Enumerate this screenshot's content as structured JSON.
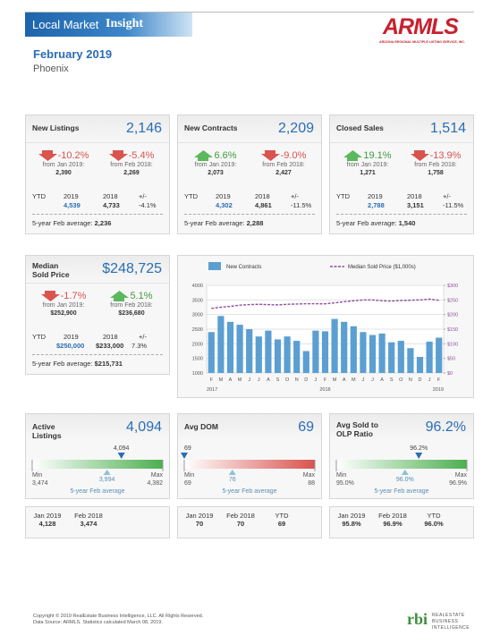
{
  "header": {
    "brand": "Local Market",
    "brand_bold": "Insight",
    "logo": "ARMLS",
    "logo_sub": "ARIZONA REGIONAL MULTIPLE LISTING SERVICE, INC.",
    "period": "February 2019",
    "area": "Phoenix"
  },
  "stats": [
    {
      "title": "New Listings",
      "value": "2,146",
      "changes": [
        {
          "pct": "-10.2%",
          "direction": "down",
          "label": "from Jan 2019:",
          "value": "2,390"
        },
        {
          "pct": "-5.4%",
          "direction": "down",
          "label": "from Feb 2018:",
          "value": "2,269"
        }
      ],
      "ytd": {
        "headers": [
          "YTD",
          "2019",
          "2018",
          "+/-"
        ],
        "values": [
          "4,539",
          "4,733",
          "-4.1%"
        ]
      },
      "avg": {
        "label": "5-year Feb average:",
        "value": "2,236"
      }
    },
    {
      "title": "New Contracts",
      "value": "2,209",
      "changes": [
        {
          "pct": "6.6%",
          "direction": "up",
          "label": "from Jan 2019:",
          "value": "2,073"
        },
        {
          "pct": "-9.0%",
          "direction": "down",
          "label": "from Feb 2018:",
          "value": "2,427"
        }
      ],
      "ytd": {
        "headers": [
          "YTD",
          "2019",
          "2018",
          "+/-"
        ],
        "values": [
          "4,302",
          "4,861",
          "-11.5%"
        ]
      },
      "avg": {
        "label": "5-year Feb average:",
        "value": "2,288"
      }
    },
    {
      "title": "Closed Sales",
      "value": "1,514",
      "changes": [
        {
          "pct": "19.1%",
          "direction": "up",
          "label": "from Jan 2019:",
          "value": "1,271"
        },
        {
          "pct": "-13.9%",
          "direction": "down",
          "label": "from Feb 2018:",
          "value": "1,758"
        }
      ],
      "ytd": {
        "headers": [
          "YTD",
          "2019",
          "2018",
          "+/-"
        ],
        "values": [
          "2,788",
          "3,151",
          "-11.5%"
        ]
      },
      "avg": {
        "label": "5-year Feb average:",
        "value": "1,540"
      }
    },
    {
      "title": "Median Sold Price",
      "value": "$248,725",
      "changes": [
        {
          "pct": "-1.7%",
          "direction": "down",
          "label": "from Jan 2019:",
          "value": "$252,900"
        },
        {
          "pct": "5.1%",
          "direction": "up",
          "label": "from Feb 2018:",
          "value": "$236,680"
        }
      ],
      "ytd": {
        "headers": [
          "YTD",
          "2019",
          "2018",
          "+/-"
        ],
        "values": [
          "$250,000",
          "$233,000",
          "7.3%"
        ]
      },
      "avg": {
        "label": "5-year Feb average:",
        "value": "$215,731"
      }
    }
  ],
  "chart_data": {
    "type": "bar-line",
    "categories": [
      "F",
      "M",
      "A",
      "M",
      "J",
      "J",
      "A",
      "S",
      "O",
      "N",
      "D",
      "J",
      "F",
      "M",
      "A",
      "M",
      "J",
      "J",
      "A",
      "S",
      "O",
      "N",
      "D",
      "J",
      "F"
    ],
    "x_groups": [
      "2017",
      "2018",
      "2019"
    ],
    "series": [
      {
        "name": "New Contracts",
        "type": "bar",
        "color": "#5b9fd2",
        "values": [
          2400,
          2950,
          2750,
          2650,
          2500,
          2250,
          2450,
          2150,
          2250,
          2100,
          1750,
          2450,
          2427,
          2850,
          2750,
          2600,
          2400,
          2300,
          2350,
          2050,
          2100,
          1850,
          1550,
          2073,
          2209
        ]
      },
      {
        "name": "Median Sold Price ($1,000s)",
        "type": "line",
        "axis": "y2",
        "color": "#8e4f9e",
        "dashed": true,
        "values": [
          221,
          225,
          228,
          232,
          234,
          235,
          234,
          233,
          235,
          236,
          237,
          237,
          236.68,
          240,
          244,
          247,
          250,
          250,
          247,
          246,
          248,
          249,
          250,
          252.9,
          248.725
        ]
      }
    ],
    "ylim": [
      1000,
      4000
    ],
    "yticks": [
      1000,
      1500,
      2000,
      2500,
      3000,
      3500,
      4000
    ],
    "y2lim": [
      0,
      300
    ],
    "y2ticks": [
      {
        "value": 0,
        "label": "$0"
      },
      {
        "value": 50,
        "label": "$50"
      },
      {
        "value": 100,
        "label": "$100"
      },
      {
        "value": 150,
        "label": "$150"
      },
      {
        "value": 200,
        "label": "$200"
      },
      {
        "value": 250,
        "label": "$250"
      },
      {
        "value": 300,
        "label": "$300"
      }
    ],
    "grid": true,
    "legend": "top"
  },
  "gauges": [
    {
      "title": "Active Listings",
      "value": "4,094",
      "color": "#4caf50",
      "current": {
        "value": 4094,
        "label": "4,094"
      },
      "avg": {
        "value": 3994,
        "label": "3,994"
      },
      "avg_label": "5-year Feb average",
      "min_label": "Min",
      "min": {
        "value": 3474,
        "label": "3,474"
      },
      "max_label": "Max",
      "max": {
        "value": 4382,
        "label": "4,382"
      },
      "history": [
        {
          "label": "Jan 2019",
          "value": "4,128"
        },
        {
          "label": "Feb 2018",
          "value": "3,474"
        }
      ]
    },
    {
      "title": "Avg DOM",
      "value": "69",
      "color": "#d9534f",
      "current": 69,
      "avg": 76,
      "avg_label": "5-year Feb average",
      "min_label": "Min",
      "min": 69,
      "max_label": "Max",
      "max": 88,
      "history": [
        {
          "label": "Jan 2019",
          "value": "70"
        },
        {
          "label": "Feb 2018",
          "value": "70"
        },
        {
          "label": "YTD",
          "value": "69"
        }
      ]
    },
    {
      "title": "Avg Sold to OLP Ratio",
      "value": "96.2%",
      "color": "#4caf50",
      "current": {
        "value": 96.2,
        "label": "96.2%"
      },
      "avg": {
        "value": 96.0,
        "label": "96.0%"
      },
      "avg_label": "5-year Feb average",
      "min_label": "Min",
      "min": {
        "value": 95.0,
        "label": "95.0%"
      },
      "max_label": "Max",
      "max": {
        "value": 96.9,
        "label": "96.9%"
      },
      "history": [
        {
          "label": "Jan 2019",
          "value": "95.8%"
        },
        {
          "label": "Feb 2018",
          "value": "96.9%"
        },
        {
          "label": "YTD",
          "value": "96.0%"
        }
      ]
    }
  ],
  "footer": {
    "copyright": "Copyright © 2019 RealEstate Business Intelligence, LLC. All Rights Reserved.",
    "source": "Data Source: ARMLS. Statistics calculated March 08, 2019.",
    "logo": "rbi",
    "logo_lines": [
      "REALESTATE",
      "BUSINESS",
      "INTELLIGENCE"
    ]
  }
}
